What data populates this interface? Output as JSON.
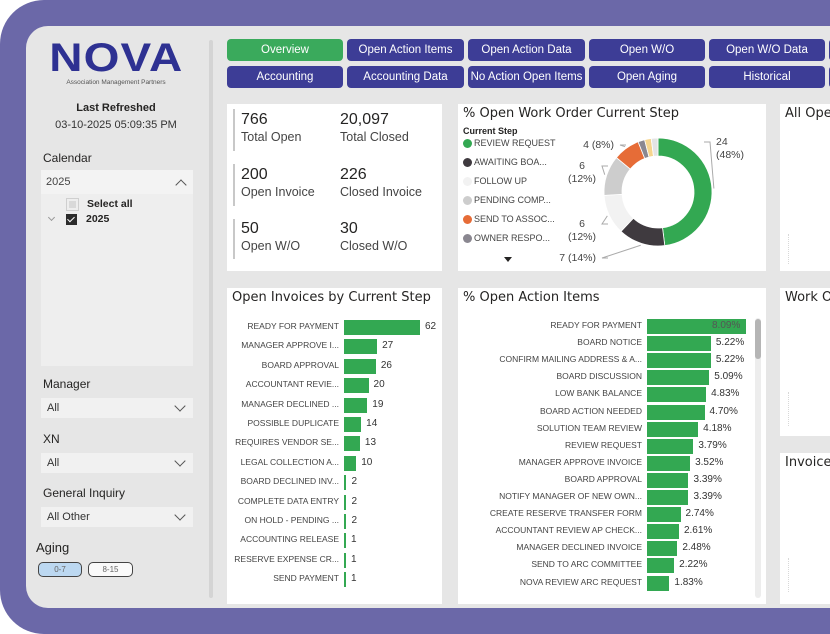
{
  "brand": {
    "name": "NOVA",
    "tagline": "Association Management Partners",
    "primary_color": "#2e3192",
    "frame_color": "#6b68a8"
  },
  "refresh": {
    "title": "Last Refreshed",
    "value": "03-10-2025 05:09:35 PM"
  },
  "filters": {
    "calendar": {
      "label": "Calendar",
      "selected": "2025",
      "options": [
        {
          "label": "Select all",
          "checked": false
        },
        {
          "label": "2025",
          "checked": true
        }
      ]
    },
    "manager": {
      "label": "Manager",
      "value": "All"
    },
    "xn": {
      "label": "XN",
      "value": "All"
    },
    "general_inquiry": {
      "label": "General Inquiry",
      "value": "All Other"
    },
    "aging": {
      "label": "Aging",
      "options": [
        {
          "label": "0-7",
          "selected": true
        },
        {
          "label": "8-15",
          "selected": false
        }
      ]
    }
  },
  "nav": {
    "row1": [
      "Overview",
      "Open Action Items",
      "Open Action Data",
      "Open W/O",
      "Open W/O Data"
    ],
    "row2": [
      "Accounting",
      "Accounting Data",
      "No Action Open Items",
      "Open Aging",
      "Historical"
    ],
    "active": "Overview",
    "active_color": "#3aaa5c",
    "button_color": "#3d3d96"
  },
  "kpis": [
    {
      "value": "766",
      "label": "Total Open"
    },
    {
      "value": "20,097",
      "label": "Total Closed"
    },
    {
      "value": "200",
      "label": "Open Invoice"
    },
    {
      "value": "226",
      "label": "Closed Invoice"
    },
    {
      "value": "50",
      "label": "Open W/O"
    },
    {
      "value": "30",
      "label": "Closed W/O"
    }
  ],
  "side_cards": [
    "All Ope",
    "Work O",
    "Invoice"
  ],
  "chart_data": [
    {
      "type": "pie",
      "variant": "donut",
      "title": "% Open Work Order Current Step",
      "legend_title": "Current Step",
      "legend_placement": "left",
      "legend": [
        {
          "label": "REVIEW REQUEST",
          "color": "#33a852"
        },
        {
          "label": "AWAITING BOA...",
          "color": "#3f3a3f"
        },
        {
          "label": "FOLLOW UP",
          "color": "#f2f2f2"
        },
        {
          "label": "PENDING COMP...",
          "color": "#cdcdcd"
        },
        {
          "label": "SEND TO ASSOC...",
          "color": "#e66c37"
        },
        {
          "label": "OWNER RESPO...",
          "color": "#8a8790"
        }
      ],
      "slices": [
        {
          "label": "REVIEW REQUEST",
          "value": 24,
          "percent": "48%",
          "color": "#33a852"
        },
        {
          "label": "AWAITING BOA...",
          "value": 7,
          "percent": "14%",
          "color": "#3f3a3f"
        },
        {
          "label": "FOLLOW UP",
          "value": 6,
          "percent": "12%",
          "color": "#f2f2f2"
        },
        {
          "label": "PENDING COMP...",
          "value": 6,
          "percent": "12%",
          "color": "#cdcdcd"
        },
        {
          "label": "SEND TO ASSOC...",
          "value": 4,
          "percent": "8%",
          "color": "#e66c37"
        },
        {
          "label": "OWNER RESPO...",
          "value": 1,
          "percent": "2%",
          "color": "#8a8790"
        },
        {
          "label": "Other",
          "value": 1,
          "percent": "2%",
          "color": "#f6d58e"
        },
        {
          "label": "Other",
          "value": 1,
          "percent": "2%",
          "color": "#e4e4e4"
        }
      ],
      "data_labels": [
        "24 (48%)",
        "7 (14%)",
        "6 (12%)",
        "6 (12%)",
        "4 (8%)"
      ]
    },
    {
      "type": "bar",
      "orientation": "horizontal",
      "title": "Open Invoices by Current Step",
      "categories": [
        "READY FOR PAYMENT",
        "MANAGER APPROVE I...",
        "BOARD APPROVAL",
        "ACCOUNTANT REVIE...",
        "MANAGER DECLINED ...",
        "POSSIBLE DUPLICATE",
        "REQUIRES VENDOR SE...",
        "LEGAL COLLECTION A...",
        "BOARD DECLINED INV...",
        "COMPLETE DATA ENTRY",
        "ON HOLD - PENDING ...",
        "ACCOUNTING RELEASE",
        "RESERVE EXPENSE CR...",
        "SEND PAYMENT"
      ],
      "values": [
        62,
        27,
        26,
        20,
        19,
        14,
        13,
        10,
        2,
        2,
        2,
        1,
        1,
        1
      ],
      "value_labels": [
        "62",
        "27",
        "26",
        "20",
        "19",
        "14",
        "13",
        "10",
        "2",
        "2",
        "2",
        "1",
        "1",
        "1"
      ],
      "xlim": [
        0,
        62
      ],
      "color": "#33a852"
    },
    {
      "type": "bar",
      "orientation": "horizontal",
      "title": "% Open Action Items",
      "categories": [
        "READY FOR PAYMENT",
        "BOARD NOTICE",
        "CONFIRM MAILING ADDRESS & A...",
        "BOARD DISCUSSION",
        "LOW BANK BALANCE",
        "BOARD ACTION NEEDED",
        "SOLUTION TEAM REVIEW",
        "REVIEW REQUEST",
        "MANAGER APPROVE INVOICE",
        "BOARD APPROVAL",
        "NOTIFY MANAGER OF NEW OWN...",
        "CREATE RESERVE TRANSFER FORM",
        "ACCOUNTANT REVIEW AP CHECK...",
        "MANAGER DECLINED INVOICE",
        "SEND TO ARC COMMITTEE",
        "NOVA REVIEW ARC REQUEST"
      ],
      "values": [
        8.09,
        5.22,
        5.22,
        5.09,
        4.83,
        4.7,
        4.18,
        3.79,
        3.52,
        3.39,
        3.39,
        2.74,
        2.61,
        2.48,
        2.22,
        1.83
      ],
      "value_labels": [
        "8.09%",
        "5.22%",
        "5.22%",
        "5.09%",
        "4.83%",
        "4.70%",
        "4.18%",
        "3.79%",
        "3.52%",
        "3.39%",
        "3.39%",
        "2.74%",
        "2.61%",
        "2.48%",
        "2.22%",
        "1.83%"
      ],
      "xlim": [
        0,
        8.09
      ],
      "color": "#33a852"
    }
  ]
}
